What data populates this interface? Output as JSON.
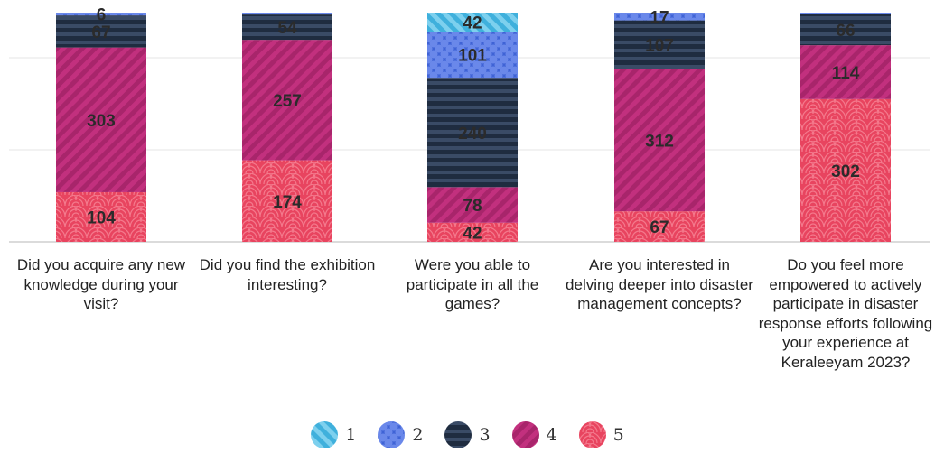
{
  "chart_data": {
    "type": "bar",
    "stacked": true,
    "categories": [
      "Did you acquire any new knowledge during your visit?",
      "Did you find the exhibition interesting?",
      "Were you able to participate in all the games?",
      "Are you interested in delving deeper into disaster management concepts?",
      "Do you feel more empowered to actively participate in disaster response efforts following your experience at Keraleeyam 2023?"
    ],
    "series": [
      {
        "name": "5",
        "color": "#e8445f",
        "pattern": "waves",
        "values": [
          104,
          174,
          42,
          67,
          302
        ]
      },
      {
        "name": "4",
        "color": "#c2307e",
        "pattern": "diagonal",
        "values": [
          303,
          257,
          78,
          312,
          114
        ]
      },
      {
        "name": "3",
        "color": "#2e3e58",
        "pattern": "horizontal",
        "values": [
          67,
          54,
          240,
          107,
          66
        ]
      },
      {
        "name": "2",
        "color": "#4c6fe0",
        "pattern": "circles",
        "values": [
          6,
          4,
          101,
          17,
          3
        ]
      },
      {
        "name": "1",
        "color": "#58bfe6",
        "pattern": "diagonal",
        "values": [
          0,
          0,
          42,
          0,
          0
        ]
      }
    ],
    "value_labels": [
      [
        "104",
        "303",
        "67",
        "6",
        ""
      ],
      [
        "174",
        "257",
        "54",
        "",
        ""
      ],
      [
        "42",
        "78",
        "240",
        "101",
        "42"
      ],
      [
        "67",
        "312",
        "107",
        "17",
        ""
      ],
      [
        "302",
        "114",
        "66",
        "",
        ""
      ]
    ],
    "legend": [
      "1",
      "2",
      "3",
      "4",
      "5"
    ],
    "legend_position": "bottom",
    "grid": true,
    "xlabel": "",
    "ylabel": ""
  }
}
